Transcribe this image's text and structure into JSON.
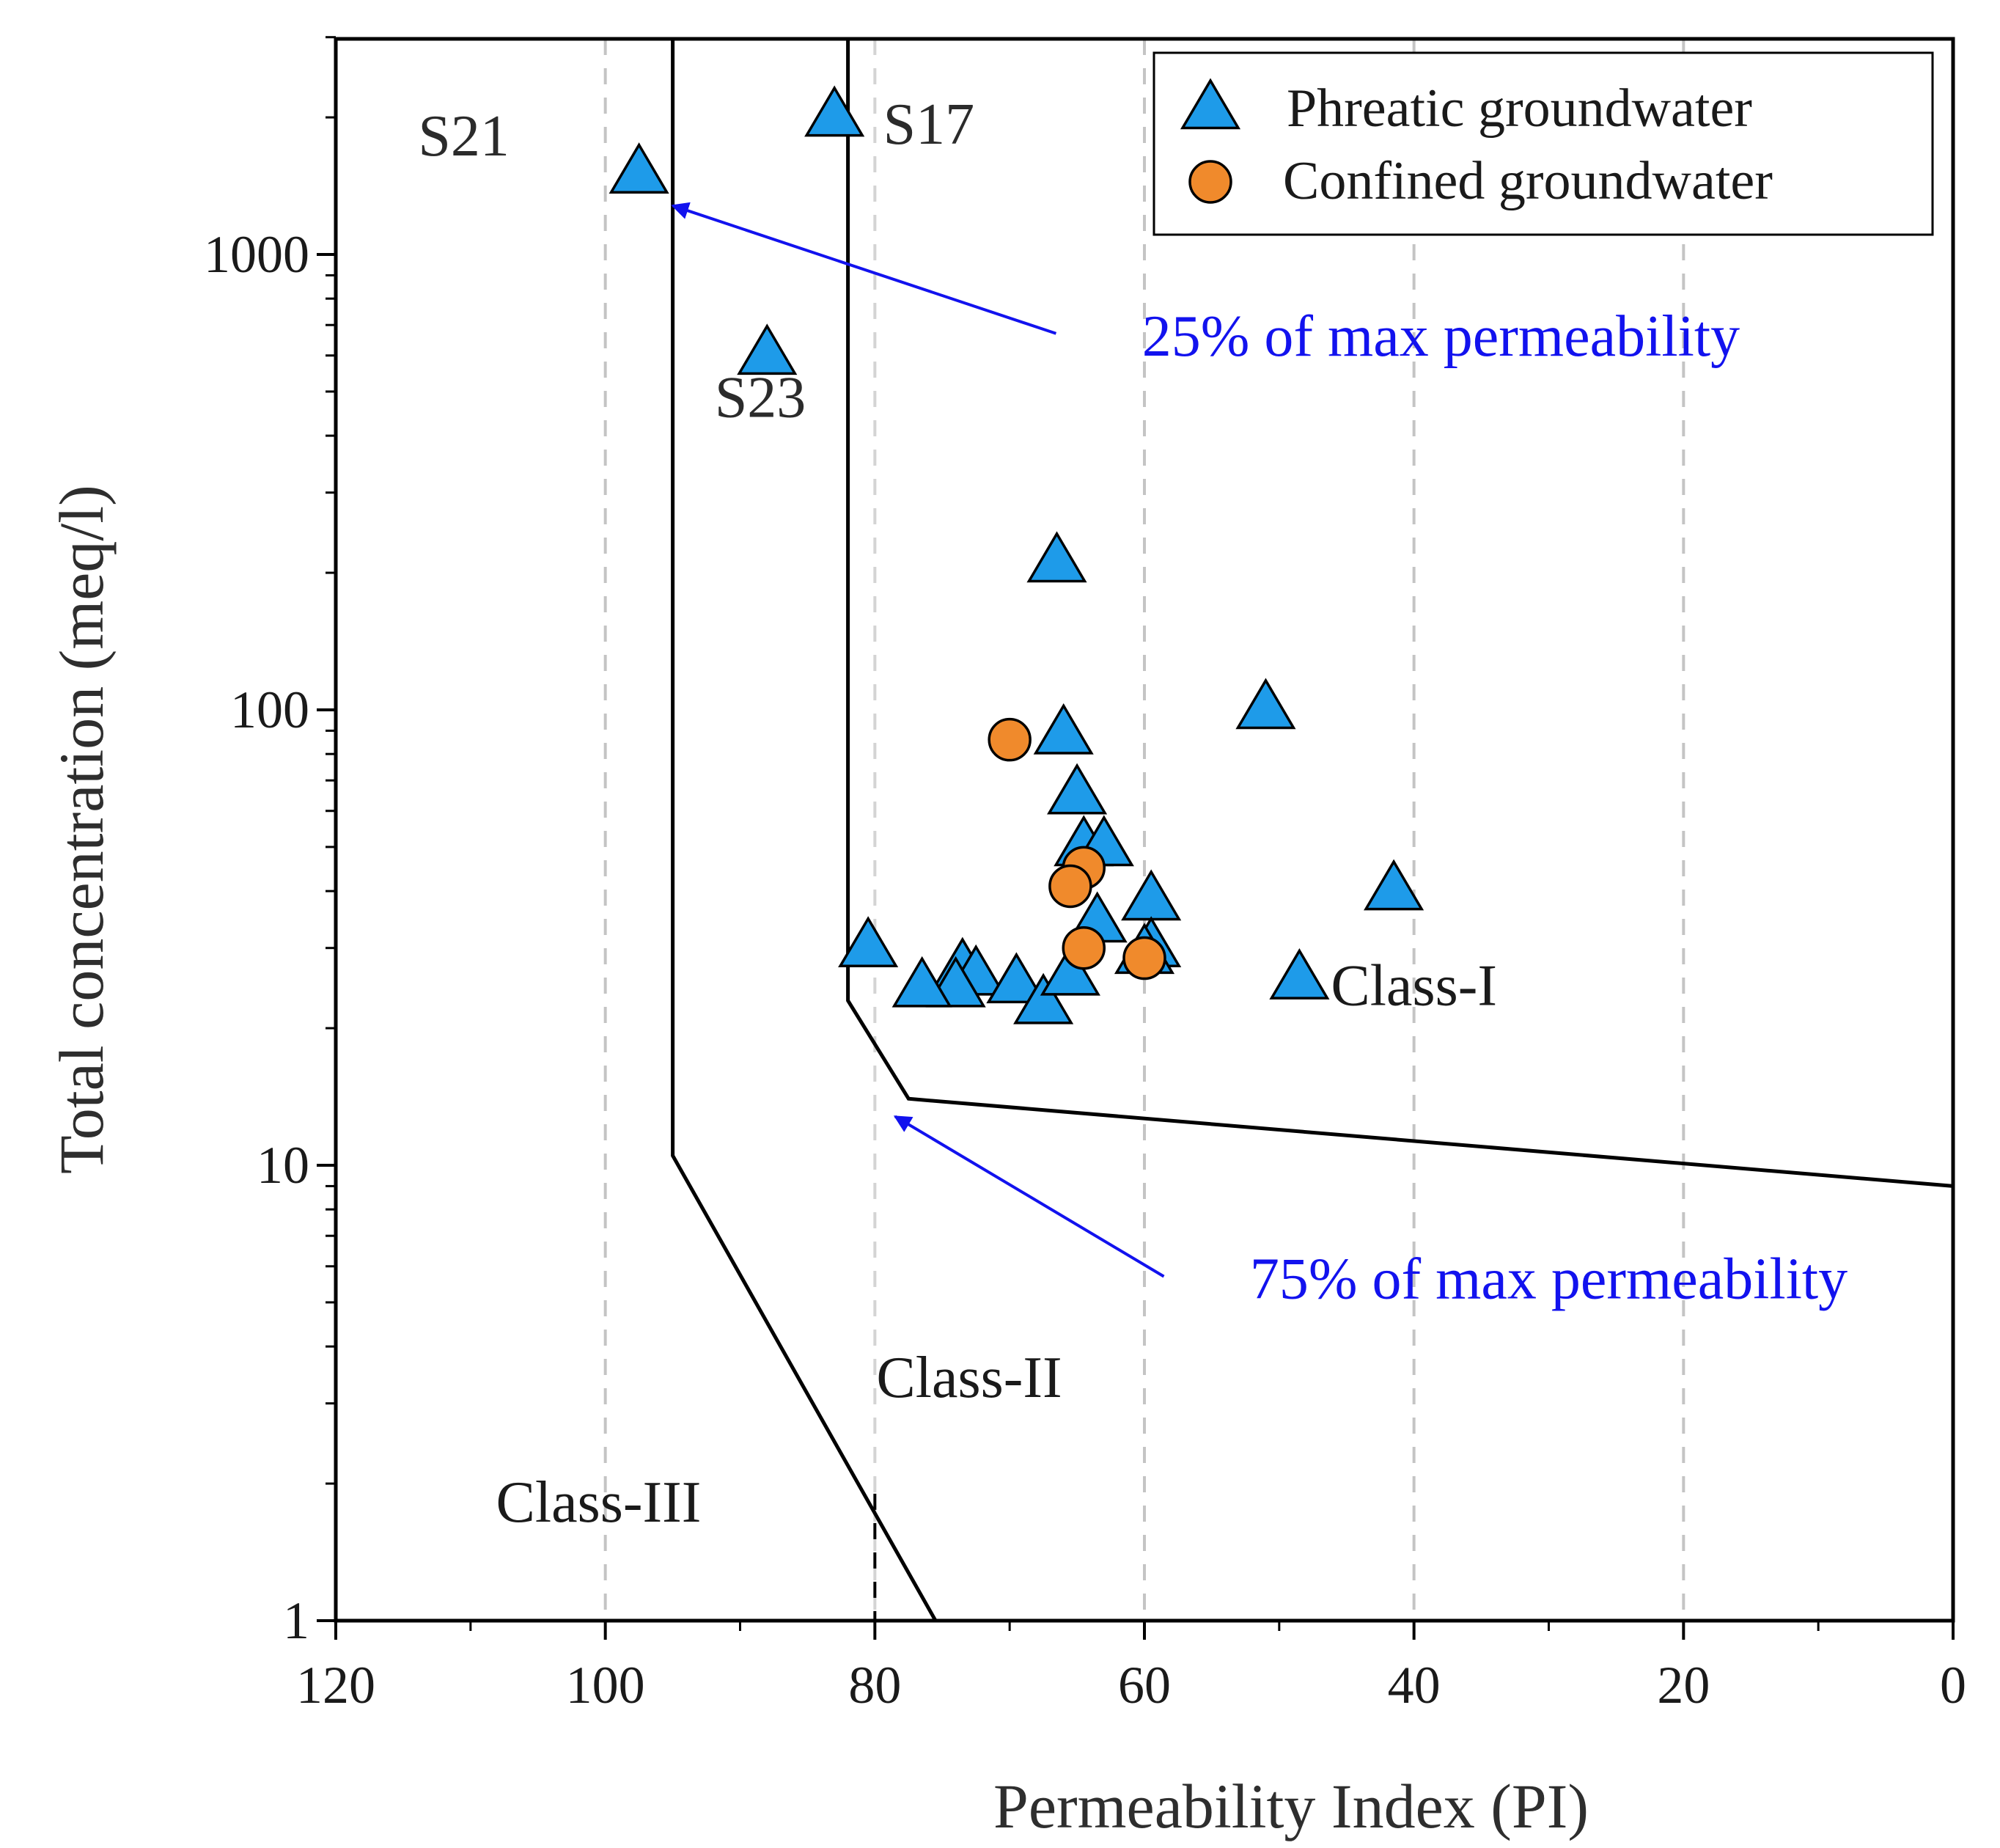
{
  "chart_data": {
    "type": "scatter",
    "title": "",
    "xlabel": "Permeability Index (PI)",
    "ylabel": "Total concentration (meq/l)",
    "xlim": [
      120,
      0
    ],
    "ylim": [
      1,
      3000
    ],
    "y_scale": "log",
    "x_ticks": [
      120,
      100,
      80,
      60,
      40,
      20,
      0
    ],
    "y_ticks": [
      1,
      10,
      100,
      1000
    ],
    "gridlines": "vertical dashed at x ticks",
    "legend_position": "top-right",
    "series": [
      {
        "name": "Phreatic groundwater",
        "marker": "triangle",
        "color": "#1e9be9",
        "points": [
          {
            "x": 97.5,
            "y": 1500
          },
          {
            "x": 83,
            "y": 2000
          },
          {
            "x": 88,
            "y": 600
          },
          {
            "x": 66.5,
            "y": 210
          },
          {
            "x": 51,
            "y": 100
          },
          {
            "x": 66,
            "y": 88
          },
          {
            "x": 65,
            "y": 65
          },
          {
            "x": 64.5,
            "y": 50
          },
          {
            "x": 63,
            "y": 50
          },
          {
            "x": 59.5,
            "y": 38
          },
          {
            "x": 63.5,
            "y": 34
          },
          {
            "x": 41.5,
            "y": 40
          },
          {
            "x": 59.5,
            "y": 30
          },
          {
            "x": 60,
            "y": 29
          },
          {
            "x": 80.5,
            "y": 30
          },
          {
            "x": 73.5,
            "y": 27
          },
          {
            "x": 72.5,
            "y": 26
          },
          {
            "x": 74,
            "y": 24.5
          },
          {
            "x": 76.5,
            "y": 24.5
          },
          {
            "x": 69.5,
            "y": 25
          },
          {
            "x": 67.5,
            "y": 22.5
          },
          {
            "x": 65.5,
            "y": 26
          },
          {
            "x": 48.5,
            "y": 25.5
          }
        ]
      },
      {
        "name": "Confined groundwater",
        "marker": "circle",
        "color": "#f08a2c",
        "points": [
          {
            "x": 70,
            "y": 86
          },
          {
            "x": 64.5,
            "y": 45
          },
          {
            "x": 65.5,
            "y": 41
          },
          {
            "x": 64.5,
            "y": 30
          },
          {
            "x": 60,
            "y": 28.5
          }
        ]
      }
    ],
    "boundary_lines": [
      {
        "name": "25% of max permeability",
        "points": [
          [
            95,
            3000
          ],
          [
            95,
            10.5
          ],
          [
            75.5,
            1
          ]
        ]
      },
      {
        "name": "75% of max permeability",
        "points": [
          [
            82,
            3000
          ],
          [
            82,
            23
          ],
          [
            77.5,
            14
          ],
          [
            0,
            9
          ]
        ]
      }
    ],
    "annotations": [
      {
        "text": "S21",
        "x": 110.5,
        "y": 1650
      },
      {
        "text": "S17",
        "x": 76,
        "y": 1750
      },
      {
        "text": "S23",
        "x": 88.5,
        "y": 440
      },
      {
        "text": "25% of max permeability",
        "color": "#1212ee",
        "x": 38,
        "y": 600,
        "arrow_to": [
          95,
          1280
        ]
      },
      {
        "text": "75% of max permeability",
        "color": "#1212ee",
        "x": 30,
        "y": 5.1,
        "arrow_to": [
          78.5,
          12.8
        ]
      },
      {
        "text": "Class-I",
        "x": 40,
        "y": 22.5
      },
      {
        "text": "Class-II",
        "x": 73,
        "y": 3.1
      },
      {
        "text": "Class-III",
        "x": 100.5,
        "y": 1.65
      }
    ]
  }
}
